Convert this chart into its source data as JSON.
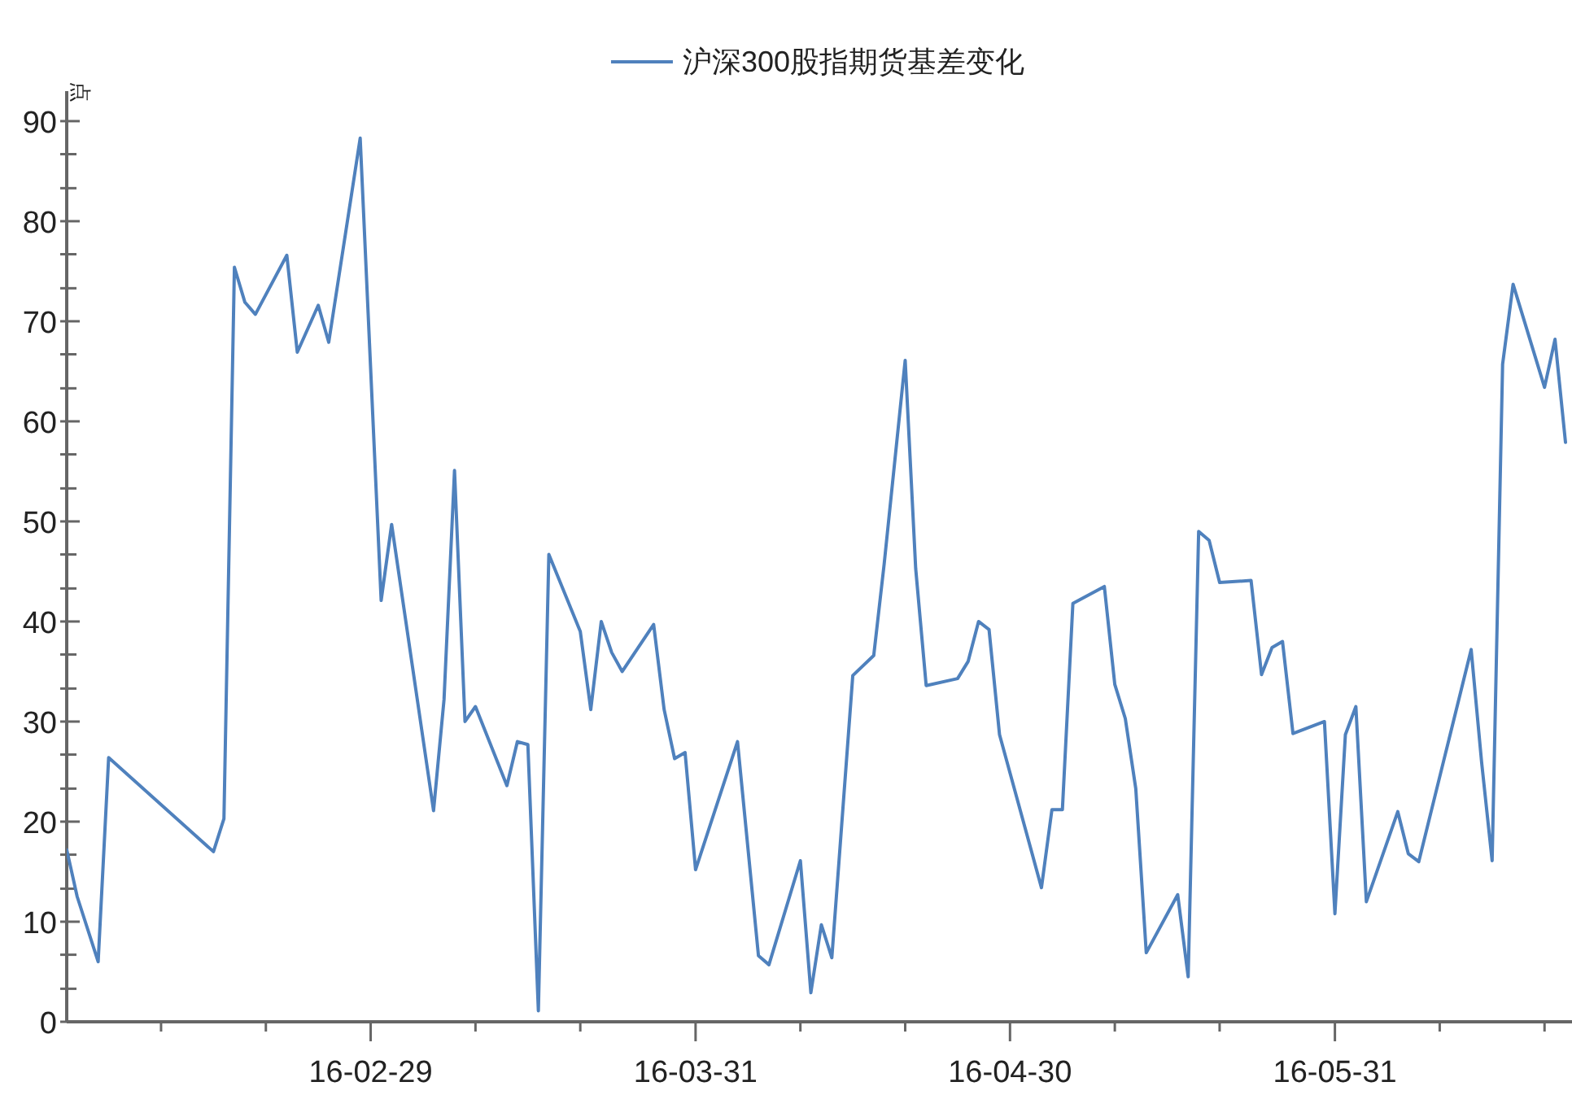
{
  "chart_data": {
    "type": "line",
    "ylabel": "点",
    "legend": "top",
    "grid": false,
    "marker": "none",
    "line_style": "solid",
    "x": [
      "--01-31",
      "--02-01",
      "--02-03",
      "--02-04",
      "--02-14",
      "--02-15",
      "--02-16",
      "--02-17",
      "--02-18",
      "--02-21",
      "--02-22",
      "--02-24",
      "--02-25",
      "--02-28",
      "--03-01",
      "--03-02",
      "--03-06",
      "--03-07",
      "--03-08",
      "--03-09",
      "--03-10",
      "--03-13",
      "--03-14",
      "--03-15",
      "--03-16",
      "--03-17",
      "--03-20",
      "--03-21",
      "--03-22",
      "--03-23",
      "--03-24",
      "--03-27",
      "--03-28",
      "--03-29",
      "--03-30",
      "--03-31",
      "--04-04",
      "--04-06",
      "--04-07",
      "--04-10",
      "--04-11",
      "--04-12",
      "--04-13",
      "--04-15",
      "--04-17",
      "--04-18",
      "--04-20",
      "--04-21",
      "--04-22",
      "--04-25",
      "--04-26",
      "--04-27",
      "--04-28",
      "--04-29",
      "--05-03",
      "--05-04",
      "--05-05",
      "--05-06",
      "--05-09",
      "--05-10",
      "--05-11",
      "--05-12",
      "--05-13",
      "--05-16",
      "--05-17",
      "--05-18",
      "--05-19",
      "--05-20",
      "--05-23",
      "--05-24",
      "--05-25",
      "--05-26",
      "--05-27",
      "--05-30",
      "--05-31",
      "--06-01",
      "--06-02",
      "--06-03",
      "--06-06",
      "--06-07",
      "--06-08",
      "--06-13",
      "--06-14",
      "--06-15",
      "--06-16",
      "--06-17",
      "--06-20",
      "--06-21",
      "--06-22"
    ],
    "series": [
      {
        "name": "沪深300股指期货基差变化",
        "color": "#4f81bd",
        "values": [
          17.2,
          12.5,
          6.0,
          26.4,
          17.0,
          20.3,
          75.4,
          71.9,
          70.7,
          76.6,
          66.9,
          71.6,
          67.9,
          88.3,
          42.1,
          49.7,
          21.1,
          32.2,
          55.1,
          30.0,
          31.5,
          23.6,
          28.0,
          27.7,
          1.1,
          46.7,
          39.0,
          31.2,
          40.0,
          36.9,
          35.0,
          39.7,
          31.2,
          26.3,
          26.9,
          15.2,
          28.0,
          6.6,
          5.7,
          16.1,
          2.9,
          9.7,
          6.4,
          34.6,
          36.6,
          45.8,
          66.1,
          45.3,
          33.6,
          34.3,
          36.0,
          40.0,
          39.2,
          28.7,
          13.4,
          21.2,
          21.2,
          41.8,
          43.5,
          33.7,
          30.3,
          23.3,
          6.9,
          12.7,
          4.5,
          49.0,
          48.1,
          43.9,
          44.1,
          34.7,
          37.4,
          38.0,
          28.8,
          30.0,
          10.8,
          28.7,
          31.5,
          12.0,
          21.0,
          16.8,
          16.0,
          37.2,
          25.9,
          16.1,
          65.7,
          73.7,
          63.4,
          68.2,
          57.9
        ]
      }
    ],
    "xlim": [
      "--01-31",
      "--06-22"
    ],
    "xticks": [
      {
        "value": "--02-09",
        "label": null
      },
      {
        "value": "--02-19",
        "label": null
      },
      {
        "value": "--02-29",
        "label": "16-02-29"
      },
      {
        "value": "--03-10",
        "label": null
      },
      {
        "value": "--03-20",
        "label": null
      },
      {
        "value": "--03-31",
        "label": "16-03-31"
      },
      {
        "value": "--04-10",
        "label": null
      },
      {
        "value": "--04-20",
        "label": null
      },
      {
        "value": "--04-30",
        "label": "16-04-30"
      },
      {
        "value": "--05-10",
        "label": null
      },
      {
        "value": "--05-20",
        "label": null
      },
      {
        "value": "--05-31",
        "label": "16-05-31"
      },
      {
        "value": "--06-10",
        "label": null
      },
      {
        "value": "--06-20",
        "label": null
      }
    ],
    "ylim": [
      0,
      93
    ],
    "yticks": [
      0,
      {
        "value": 3.3,
        "label": null
      },
      {
        "value": 6.7,
        "label": null
      },
      10,
      {
        "value": 13.3,
        "label": null
      },
      {
        "value": 16.7,
        "label": null
      },
      20,
      {
        "value": 23.3,
        "label": null
      },
      {
        "value": 26.7,
        "label": null
      },
      30,
      {
        "value": 33.3,
        "label": null
      },
      {
        "value": 36.7,
        "label": null
      },
      40,
      {
        "value": 43.3,
        "label": null
      },
      {
        "value": 46.7,
        "label": null
      },
      50,
      {
        "value": 53.3,
        "label": null
      },
      {
        "value": 56.7,
        "label": null
      },
      60,
      {
        "value": 63.3,
        "label": null
      },
      {
        "value": 66.7,
        "label": null
      },
      70,
      {
        "value": 73.3,
        "label": null
      },
      {
        "value": 76.7,
        "label": null
      },
      80,
      {
        "value": 83.3,
        "label": null
      },
      {
        "value": 86.7,
        "label": null
      },
      90
    ]
  }
}
